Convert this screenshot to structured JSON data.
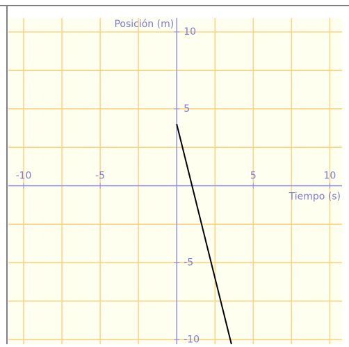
{
  "chart_data": {
    "type": "line",
    "x_label": "Tiempo (s)",
    "y_label": "Posición (m)",
    "xlim": [
      -11,
      10.8
    ],
    "ylim": [
      -10.3,
      10.9
    ],
    "xticks": [
      -10,
      -5,
      5,
      10
    ],
    "yticks": [
      -10,
      -5,
      5,
      10
    ],
    "xgrid": [
      -10,
      -7.5,
      -5,
      -2.5,
      2.5,
      5,
      7.5,
      10
    ],
    "ygrid": [
      -10,
      -7.5,
      -5,
      -2.5,
      2.5,
      5,
      7.5,
      10
    ],
    "grid": true,
    "series": [
      {
        "color": "#000000",
        "x": [
          0,
          3.575
        ],
        "values": [
          4,
          -10.3
        ]
      }
    ]
  }
}
